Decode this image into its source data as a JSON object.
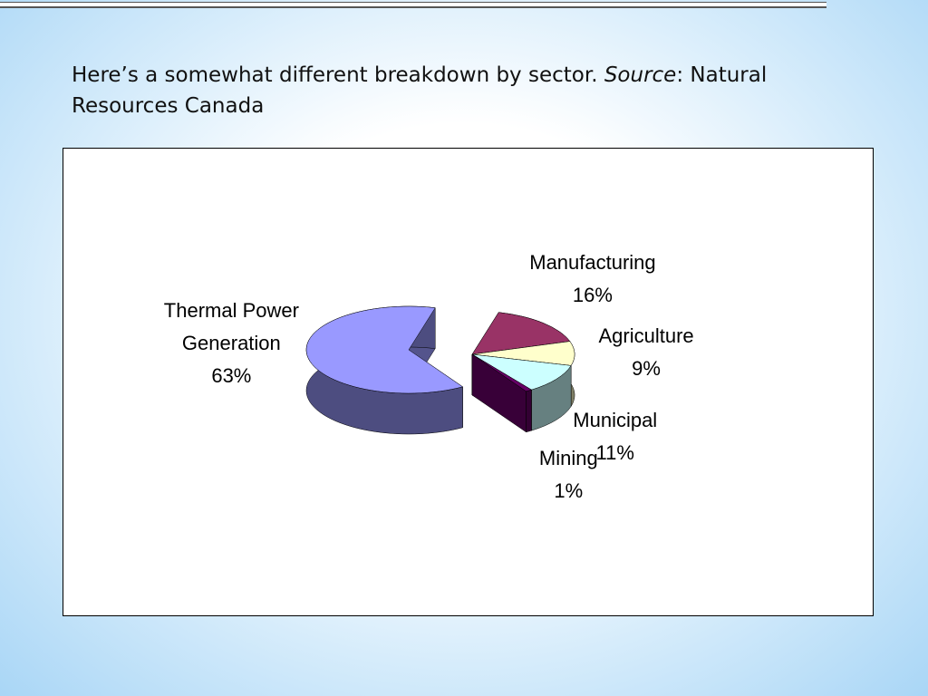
{
  "slide": {
    "caption": [
      "Here’s a somewhat different breakdown by sector. ",
      "Source",
      ": Natural Resources Canada"
    ]
  },
  "chart_data": {
    "type": "pie",
    "categories": [
      "Manufacturing",
      "Agriculture",
      "Municipal",
      "Mining",
      "Thermal Power Generation"
    ],
    "values": [
      16,
      9,
      11,
      1,
      63
    ],
    "value_labels": [
      "16%",
      "9%",
      "11%",
      "1%",
      "63%"
    ],
    "colors": [
      "#993366",
      "#ffffcc",
      "#ccffff",
      "#660066",
      "#9999ff"
    ]
  }
}
